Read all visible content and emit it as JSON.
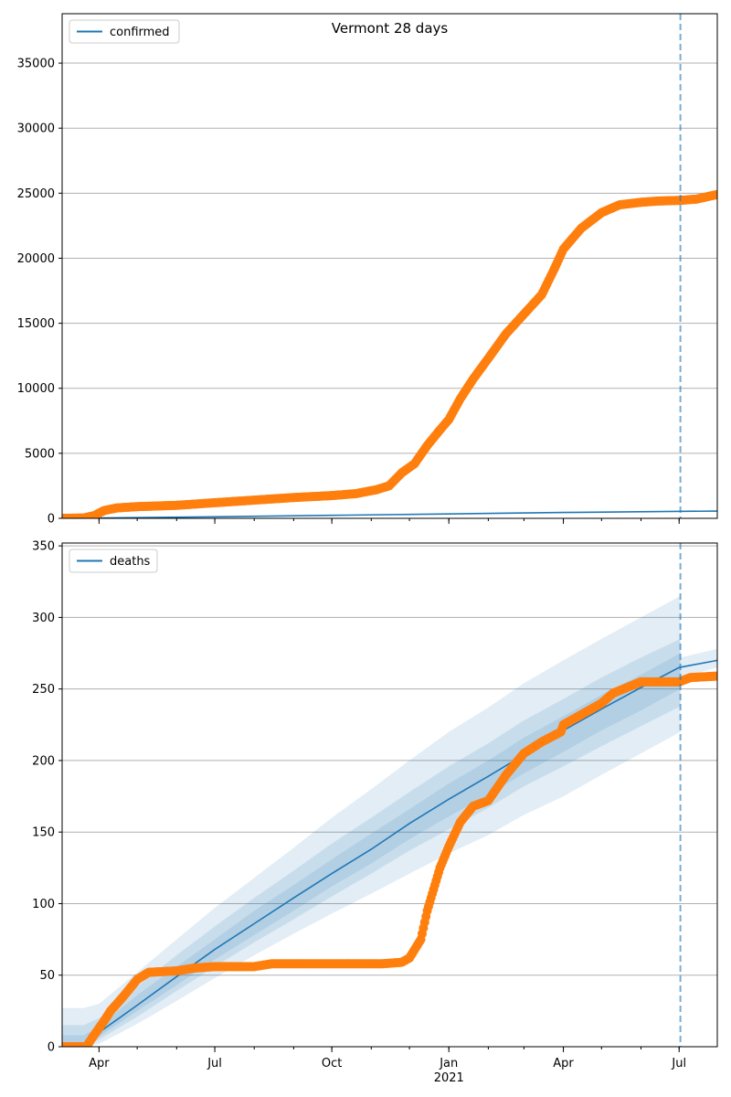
{
  "chart_data": [
    {
      "type": "line",
      "title": "Vermont 28 days",
      "xlabel": "",
      "ylabel": "",
      "x_tick_labels": [
        "Apr",
        "Jul",
        "Oct",
        "Jan\n2021",
        "Apr",
        "Jul"
      ],
      "x_tick_dates": [
        "2020-04-01",
        "2020-07-01",
        "2020-10-01",
        "2021-01-01",
        "2021-04-01",
        "2021-07-01"
      ],
      "xlim": [
        "2020-03-03",
        "2021-07-31"
      ],
      "ylim": [
        0,
        38800
      ],
      "y_ticks": [
        0,
        5000,
        10000,
        15000,
        20000,
        25000,
        30000,
        35000
      ],
      "grid": "horizontal",
      "legend": {
        "position": "top-left",
        "entries": [
          "confirmed"
        ]
      },
      "vline_date": "2021-07-02",
      "series": [
        {
          "name": "confirmed",
          "kind": "model-line",
          "color": "#1f77b4",
          "x": [
            "2020-03-03",
            "2020-07-01",
            "2020-10-01",
            "2021-01-01",
            "2021-04-01",
            "2021-07-31"
          ],
          "y": [
            0,
            120,
            230,
            340,
            450,
            560
          ]
        },
        {
          "kind": "observed",
          "color": "#ff7f0e",
          "x": [
            "2020-03-03",
            "2020-03-20",
            "2020-03-28",
            "2020-04-05",
            "2020-04-15",
            "2020-05-01",
            "2020-06-01",
            "2020-07-01",
            "2020-08-01",
            "2020-09-01",
            "2020-10-01",
            "2020-10-20",
            "2020-11-05",
            "2020-11-15",
            "2020-11-25",
            "2020-12-05",
            "2020-12-15",
            "2020-12-25",
            "2021-01-01",
            "2021-01-10",
            "2021-01-20",
            "2021-02-01",
            "2021-02-15",
            "2021-03-01",
            "2021-03-15",
            "2021-03-25",
            "2021-04-01",
            "2021-04-15",
            "2021-05-01",
            "2021-05-15",
            "2021-06-01",
            "2021-06-15",
            "2021-07-02",
            "2021-07-15",
            "2021-07-31"
          ],
          "y": [
            0,
            30,
            200,
            600,
            800,
            900,
            1000,
            1200,
            1400,
            1600,
            1750,
            1900,
            2200,
            2500,
            3500,
            4200,
            5600,
            6800,
            7600,
            9200,
            10700,
            12300,
            14200,
            15700,
            17200,
            19200,
            20700,
            22300,
            23500,
            24100,
            24300,
            24400,
            24450,
            24550,
            24900
          ]
        }
      ]
    },
    {
      "type": "line",
      "title": "",
      "xlabel": "",
      "ylabel": "",
      "x_tick_labels": [
        "Apr",
        "Jul",
        "Oct",
        "Jan\n2021",
        "Apr",
        "Jul"
      ],
      "x_tick_dates": [
        "2020-04-01",
        "2020-07-01",
        "2020-10-01",
        "2021-01-01",
        "2021-04-01",
        "2021-07-01"
      ],
      "xlim": [
        "2020-03-03",
        "2021-07-31"
      ],
      "ylim": [
        0,
        352
      ],
      "y_ticks": [
        0,
        50,
        100,
        150,
        200,
        250,
        300,
        350
      ],
      "grid": "horizontal",
      "legend": {
        "position": "top-left",
        "entries": [
          "deaths"
        ]
      },
      "vline_date": "2021-07-02",
      "series": [
        {
          "name": "deaths",
          "kind": "model-line",
          "color": "#1f77b4",
          "x": [
            "2020-03-20",
            "2020-04-01",
            "2020-05-01",
            "2020-06-01",
            "2020-07-01",
            "2020-08-01",
            "2020-09-01",
            "2020-10-01",
            "2020-11-01",
            "2020-12-01",
            "2021-01-01",
            "2021-02-01",
            "2021-03-01",
            "2021-04-01",
            "2021-05-01",
            "2021-06-01",
            "2021-07-01",
            "2021-07-31"
          ],
          "y": [
            2,
            10,
            29,
            49,
            68,
            86,
            104,
            121,
            138,
            156,
            173,
            189,
            204,
            221,
            236,
            251,
            265,
            270
          ]
        },
        {
          "kind": "band",
          "x": [
            "2020-03-03",
            "2020-03-20",
            "2020-04-01",
            "2020-05-01",
            "2020-06-01",
            "2020-07-01",
            "2020-08-01",
            "2020-09-01",
            "2020-10-01",
            "2020-11-01",
            "2020-12-01",
            "2021-01-01",
            "2021-02-01",
            "2021-03-01",
            "2021-04-01",
            "2021-05-01",
            "2021-06-01",
            "2021-07-02"
          ],
          "outer_lower": [
            0,
            0,
            2,
            16,
            32,
            48,
            64,
            79,
            93,
            107,
            121,
            135,
            148,
            162,
            175,
            190,
            205,
            220
          ],
          "outer_upper": [
            27,
            27,
            30,
            52,
            75,
            97,
            118,
            139,
            160,
            180,
            200,
            220,
            237,
            254,
            270,
            285,
            300,
            315
          ],
          "mid_lower": [
            0,
            0,
            5,
            21,
            39,
            56,
            73,
            89,
            105,
            121,
            137,
            152,
            167,
            182,
            196,
            210,
            224,
            238
          ],
          "mid_upper": [
            15,
            15,
            20,
            42,
            64,
            84,
            104,
            123,
            142,
            160,
            178,
            196,
            212,
            228,
            243,
            258,
            272,
            285
          ],
          "inner_lower": [
            0,
            0,
            7,
            25,
            43,
            61,
            78,
            95,
            112,
            128,
            145,
            161,
            176,
            191,
            206,
            221,
            235,
            250
          ],
          "inner_upper": [
            8,
            8,
            14,
            36,
            56,
            75,
            95,
            113,
            131,
            149,
            166,
            184,
            200,
            216,
            231,
            246,
            260,
            275
          ]
        },
        {
          "kind": "band-extension",
          "x": [
            "2021-07-02",
            "2021-07-31"
          ],
          "lower": [
            258,
            265
          ],
          "upper": [
            272,
            278
          ]
        },
        {
          "kind": "observed",
          "color": "#ff7f0e",
          "x": [
            "2020-03-03",
            "2020-03-22",
            "2020-03-28",
            "2020-04-05",
            "2020-04-10",
            "2020-04-20",
            "2020-05-01",
            "2020-05-10",
            "2020-06-01",
            "2020-06-15",
            "2020-07-01",
            "2020-08-01",
            "2020-08-15",
            "2020-09-15",
            "2020-10-15",
            "2020-11-10",
            "2020-11-25",
            "2020-12-01",
            "2020-12-10",
            "2020-12-15",
            "2020-12-20",
            "2020-12-25",
            "2021-01-01",
            "2021-01-10",
            "2021-01-20",
            "2021-02-01",
            "2021-02-15",
            "2021-03-01",
            "2021-03-15",
            "2021-03-30",
            "2021-04-01",
            "2021-04-15",
            "2021-05-01",
            "2021-05-10",
            "2021-06-01",
            "2021-07-01",
            "2021-07-10",
            "2021-07-31"
          ],
          "y": [
            0,
            0,
            8,
            18,
            25,
            35,
            47,
            52,
            53,
            55,
            56,
            56,
            58,
            58,
            58,
            58,
            59,
            62,
            75,
            95,
            110,
            125,
            140,
            157,
            168,
            172,
            190,
            205,
            213,
            220,
            225,
            232,
            240,
            247,
            255,
            255,
            258,
            259
          ]
        }
      ]
    }
  ]
}
